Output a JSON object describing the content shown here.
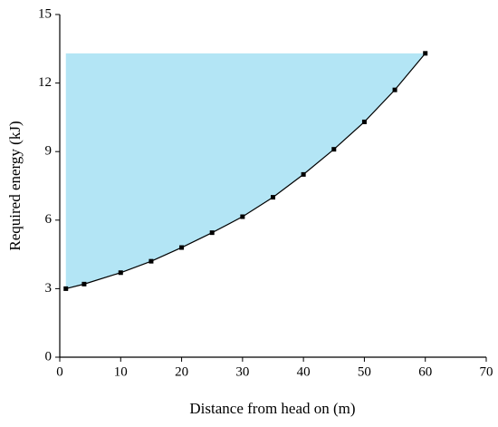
{
  "chart_data": {
    "type": "line",
    "x_label": "Distance from head on (m)",
    "y_label": "Required energy (kJ)",
    "x": [
      1,
      4,
      10,
      15,
      20,
      25,
      30,
      35,
      40,
      45,
      50,
      55,
      60
    ],
    "series": [
      {
        "values": [
          3.0,
          3.2,
          3.7,
          4.2,
          4.8,
          5.45,
          6.15,
          7.0,
          8.0,
          9.1,
          10.3,
          11.7,
          13.3
        ],
        "color": "#000000"
      }
    ],
    "area_color": "#b3e5f5",
    "xlim": [
      0,
      70
    ],
    "xticks": [
      0,
      10,
      20,
      30,
      40,
      50,
      60,
      70
    ],
    "ylim": [
      0,
      15
    ],
    "yticks": [
      0,
      3,
      6,
      9,
      12,
      15
    ]
  }
}
